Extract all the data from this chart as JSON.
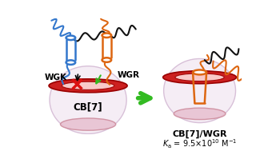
{
  "bg_color": "#ffffff",
  "cb7_body_color": "#f5edf5",
  "cb7_body_edge": "#d8c0d8",
  "cb7_rim_color": "#cc2020",
  "cb7_rim_edge": "#990000",
  "cb7_rim_inner": "#ffdddd",
  "cb7_bottom_color": "#e8c0d0",
  "cb7_bottom_edge": "#cc8899",
  "wgk_color": "#3377cc",
  "wgr_color": "#dd6611",
  "black_chain": "#111111",
  "green_arrow": "#33bb22",
  "red_x_color": "#dd1111",
  "label_wgk": "WGK",
  "label_wgr": "WGR",
  "label_cb7_left": "CB[7]",
  "label_cb7_right": "CB[7]/WGR",
  "fig_width": 3.35,
  "fig_height": 1.89,
  "dpi": 100
}
